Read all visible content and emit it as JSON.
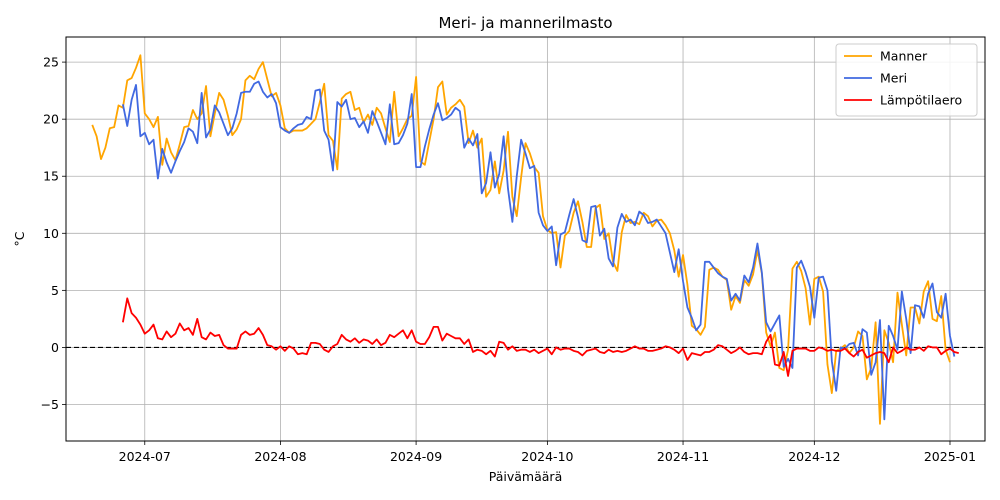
{
  "chart_data": {
    "type": "line",
    "title": "Meri- ja mannerilmasto",
    "xlabel": "Päivämäärä",
    "ylabel": "°C",
    "x_range": [
      "2024-06-13",
      "2025-01-09"
    ],
    "ylim": [
      -8.2,
      27.2
    ],
    "y_ticks": [
      -5,
      0,
      5,
      10,
      15,
      20,
      25
    ],
    "y_tick_labels": [
      "−5",
      "0",
      "5",
      "10",
      "15",
      "20",
      "25"
    ],
    "x_ticks": [
      "2024-07-01",
      "2024-08-01",
      "2024-09-01",
      "2024-10-01",
      "2024-11-01",
      "2024-12-01",
      "2025-01-01"
    ],
    "x_tick_labels": [
      "2024-07",
      "2024-08",
      "2024-09",
      "2024-10",
      "2024-11",
      "2024-12",
      "2025-01"
    ],
    "grid": true,
    "legend_position": "upper-right",
    "reference_line": {
      "y": 0,
      "style": "dashed",
      "color": "#000000"
    },
    "series": [
      {
        "name": "Manner",
        "color": "#FFA500",
        "start": "2024-06-19",
        "values": [
          19.5,
          18.5,
          16.5,
          17.5,
          19.2,
          19.3,
          21.2,
          21.0,
          23.4,
          23.6,
          24.5,
          25.6,
          20.5,
          20.0,
          19.3,
          20.2,
          16.0,
          18.3,
          17.1,
          16.4,
          17.8,
          19.3,
          19.4,
          20.8,
          20.0,
          20.5,
          22.9,
          18.5,
          20.5,
          22.3,
          21.7,
          20.3,
          18.6,
          19.1,
          20.0,
          23.4,
          23.8,
          23.5,
          24.4,
          25.0,
          23.5,
          22.0,
          22.3,
          21.2,
          19.2,
          18.8,
          19.0,
          19.0,
          19.0,
          19.2,
          19.6,
          20.0,
          21.5,
          23.1,
          18.6,
          18.1,
          15.6,
          21.8,
          22.2,
          22.4,
          20.8,
          21.0,
          19.7,
          20.4,
          19.5,
          21.0,
          20.5,
          19.2,
          18.0,
          22.4,
          18.5,
          19.2,
          20.0,
          20.3,
          23.7,
          16.3,
          16.0,
          18.0,
          20.0,
          22.8,
          23.3,
          20.4,
          21.0,
          21.3,
          21.7,
          21.1,
          17.9,
          19.0,
          17.5,
          18.3,
          13.2,
          13.8,
          16.3,
          13.5,
          15.5,
          18.9,
          13.2,
          11.5,
          14.9,
          17.9,
          17.0,
          15.8,
          15.3,
          11.5,
          10.3,
          10.0,
          10.1,
          7.0,
          9.8,
          10.2,
          11.8,
          12.8,
          11.0,
          8.8,
          8.8,
          12.2,
          12.5,
          9.5,
          10.0,
          7.5,
          6.7,
          10.1,
          11.6,
          10.9,
          11.0,
          10.8,
          11.8,
          11.5,
          10.6,
          11.1,
          11.2,
          10.7,
          10.0,
          8.5,
          6.2,
          8.1,
          5.5,
          1.9,
          1.6,
          1.1,
          1.8,
          6.8,
          7.0,
          6.8,
          6.2,
          5.9,
          3.3,
          4.5,
          3.9,
          5.9,
          5.4,
          6.4,
          8.5,
          6.5,
          1.3,
          0.1,
          1.3,
          -1.8,
          -2.0,
          -0.2,
          6.9,
          7.5,
          6.7,
          5.2,
          2.0,
          6.0,
          6.2,
          4.9,
          -1.5,
          -4.0,
          -0.3,
          -0.1,
          0.2,
          -0.5,
          0.0,
          1.4,
          1.0,
          -2.8,
          -1.8,
          2.2,
          -6.7,
          1.5,
          0.4,
          -1.3,
          4.8,
          2.0,
          -0.7,
          3.5,
          3.5,
          2.1,
          4.9,
          5.8,
          2.5,
          2.3,
          4.5,
          -0.2,
          -1.3
        ]
      },
      {
        "name": "Meri",
        "color": "#4169E1",
        "start": "2024-06-26",
        "values": [
          21.3,
          19.4,
          21.7,
          23.0,
          18.5,
          18.8,
          17.8,
          18.2,
          14.8,
          17.4,
          16.2,
          15.3,
          16.3,
          17.2,
          18.0,
          19.2,
          18.9,
          17.9,
          22.3,
          18.4,
          19.1,
          21.2,
          20.6,
          19.6,
          18.6,
          19.2,
          20.5,
          22.3,
          22.4,
          22.4,
          23.1,
          23.3,
          22.4,
          21.9,
          22.2,
          21.4,
          19.3,
          19.0,
          18.8,
          19.2,
          19.5,
          19.6,
          20.2,
          20.0,
          22.5,
          22.6,
          19.0,
          18.2,
          15.5,
          21.5,
          21.1,
          21.7,
          20.0,
          20.1,
          19.3,
          19.8,
          18.8,
          20.7,
          19.8,
          18.8,
          17.8,
          21.3,
          17.8,
          17.9,
          18.6,
          19.6,
          22.2,
          15.8,
          15.8,
          17.6,
          19.1,
          20.4,
          21.4,
          19.9,
          20.1,
          20.4,
          21.0,
          20.7,
          17.5,
          18.3,
          17.7,
          18.7,
          13.5,
          14.4,
          17.1,
          14.0,
          15.2,
          18.5,
          13.9,
          11.0,
          15.0,
          18.2,
          17.0,
          15.7,
          15.9,
          11.8,
          10.7,
          10.2,
          10.6,
          7.2,
          9.9,
          10.1,
          11.6,
          13.0,
          11.4,
          9.4,
          9.2,
          12.3,
          12.4,
          9.8,
          10.4,
          7.8,
          7.1,
          10.5,
          11.7,
          11.0,
          11.2,
          10.7,
          11.9,
          11.6,
          10.9,
          11.0,
          11.2,
          10.6,
          10.0,
          8.3,
          6.6,
          8.6,
          5.8,
          3.5,
          2.6,
          1.5,
          2.0,
          7.5,
          7.5,
          7.0,
          6.5,
          6.2,
          6.0,
          4.1,
          4.7,
          4.1,
          6.3,
          5.7,
          7.0,
          9.1,
          6.6,
          2.2,
          1.4,
          2.1,
          2.8,
          -1.7,
          -1.0,
          -1.8,
          7.0,
          7.6,
          6.6,
          5.3,
          2.6,
          6.1,
          6.2,
          5.0,
          -1.2,
          -3.8,
          0.0,
          -0.1,
          0.3,
          0.4,
          -0.7,
          1.6,
          1.3,
          -2.4,
          -1.3,
          2.4,
          -6.3,
          1.9,
          1.0,
          -0.2,
          4.9,
          2.5,
          -0.5,
          3.7,
          3.6,
          2.6,
          4.7,
          5.6,
          3.1,
          2.6,
          4.7,
          1.0,
          -0.8
        ]
      },
      {
        "name": "Lämpötilaero",
        "color": "#FF0000",
        "start": "2024-06-26",
        "values": [
          2.2,
          4.3,
          3.0,
          2.6,
          2.0,
          1.2,
          1.5,
          2.0,
          0.8,
          0.7,
          1.4,
          0.9,
          1.2,
          2.1,
          1.5,
          1.7,
          1.1,
          2.5,
          0.9,
          0.7,
          1.3,
          1.0,
          1.1,
          0.2,
          -0.1,
          -0.1,
          -0.1,
          1.1,
          1.4,
          1.1,
          1.2,
          1.7,
          1.1,
          0.2,
          0.1,
          -0.2,
          0.1,
          -0.3,
          0.1,
          -0.1,
          -0.6,
          -0.5,
          -0.6,
          0.4,
          0.4,
          0.3,
          -0.2,
          -0.4,
          0.1,
          0.3,
          1.1,
          0.7,
          0.5,
          0.8,
          0.4,
          0.7,
          0.6,
          0.3,
          0.7,
          0.2,
          0.4,
          1.1,
          0.9,
          1.2,
          1.5,
          0.8,
          1.5,
          0.5,
          0.3,
          0.3,
          0.9,
          1.8,
          1.8,
          0.6,
          1.2,
          1.0,
          0.8,
          0.8,
          0.3,
          0.7,
          -0.4,
          -0.2,
          -0.3,
          -0.6,
          -0.3,
          -0.8,
          0.5,
          0.4,
          -0.2,
          0.1,
          -0.3,
          -0.2,
          -0.2,
          -0.4,
          -0.2,
          -0.5,
          -0.3,
          -0.1,
          -0.6,
          0.0,
          -0.2,
          -0.1,
          -0.1,
          -0.3,
          -0.4,
          -0.7,
          -0.3,
          -0.2,
          -0.1,
          -0.4,
          -0.5,
          -0.2,
          -0.4,
          -0.3,
          -0.4,
          -0.3,
          -0.1,
          0.1,
          -0.1,
          -0.1,
          -0.3,
          -0.3,
          -0.2,
          -0.1,
          0.1,
          0.0,
          -0.2,
          -0.5,
          -0.1,
          -1.1,
          -0.5,
          -0.6,
          -0.7,
          -0.4,
          -0.4,
          -0.2,
          0.2,
          0.1,
          -0.2,
          -0.5,
          -0.3,
          0.0,
          -0.4,
          -0.6,
          -0.5,
          -0.5,
          -0.6,
          0.5,
          1.1,
          -1.5,
          -1.6,
          -0.4,
          -2.5,
          -0.3,
          -0.1,
          -0.1,
          -0.1,
          -0.3,
          -0.3,
          0.0,
          -0.1,
          -0.3,
          -0.2,
          -0.3,
          -0.3,
          -0.1,
          -0.5,
          -0.8,
          -0.4,
          -0.2,
          -0.9,
          -0.7,
          -0.5,
          -0.4,
          -0.5,
          -1.3,
          0.0,
          -0.5,
          -0.3,
          0.0,
          -0.2,
          -0.2,
          0.0,
          -0.3,
          0.1,
          0.0,
          0.0,
          -0.6,
          -0.3,
          -0.1,
          -0.4,
          -0.5
        ]
      }
    ]
  }
}
